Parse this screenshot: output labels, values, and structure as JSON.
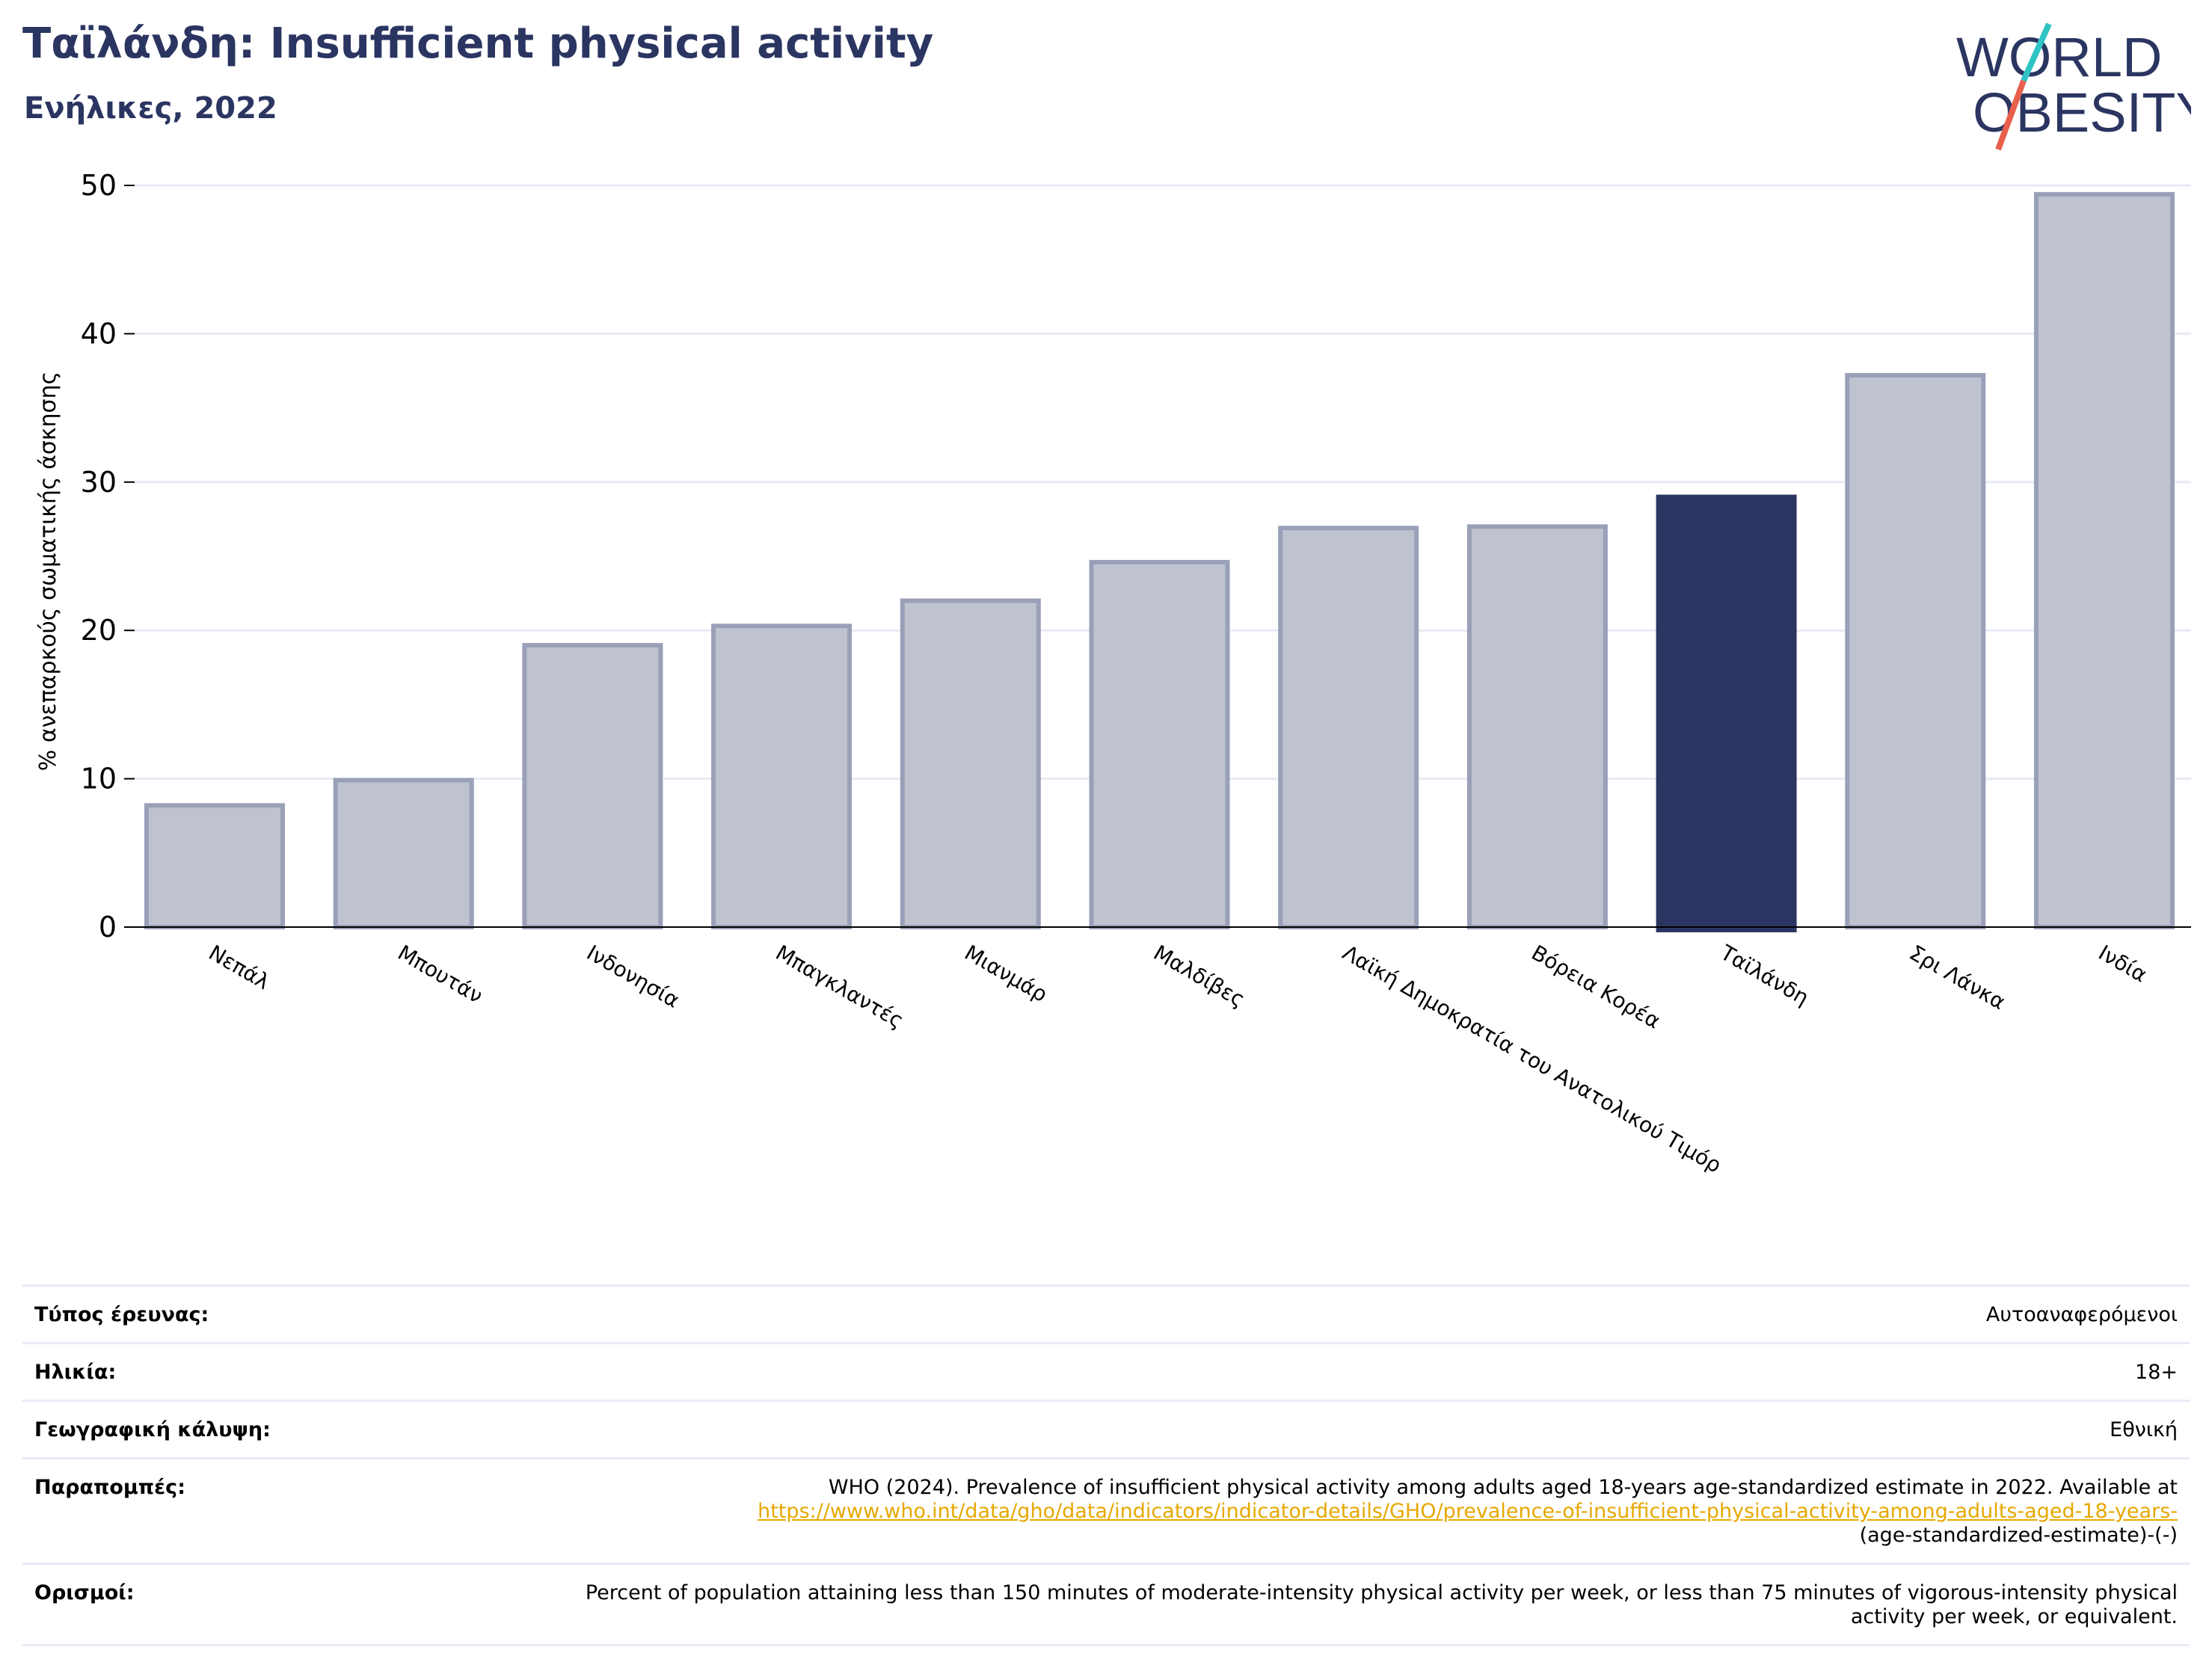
{
  "header": {
    "title": "Ταϊλάνδη: Insufficient physical activity",
    "subtitle": "Ενήλικες, 2022"
  },
  "logo": {
    "line1": "WORLD",
    "line2": "OBESITY",
    "primary_color": "#2b3561",
    "slash_color_top": "#2ec4c4",
    "slash_color_bottom": "#e8604c"
  },
  "chart_data": {
    "type": "bar",
    "ylabel": "% ανεπαρκούς σωματικής άσκησης",
    "ylim": [
      0,
      50
    ],
    "yticks": [
      0,
      10,
      20,
      30,
      40,
      50
    ],
    "grid": true,
    "categories": [
      "Νεπάλ",
      "Μπουτάν",
      "Ινδονησία",
      "Μπαγκλαντές",
      "Μιανμάρ",
      "Μαλδίβες",
      "Λαϊκή Δημοκρατία του Ανατολικού Τιμόρ",
      "Βόρεια Κορέα",
      "Ταϊλάνδη",
      "Σρι Λάνκα",
      "Ινδία"
    ],
    "values": [
      8.2,
      9.9,
      19.0,
      20.3,
      22.0,
      24.6,
      26.9,
      27.0,
      29.0,
      37.2,
      49.4
    ],
    "highlight": "Ταϊλάνδη",
    "colors": {
      "bar": "#bfc3d0",
      "bar_edge": "#9aa0b8",
      "highlight": "#2b3561"
    }
  },
  "meta": [
    {
      "label": "Τύπος έρευνας:",
      "value": "Αυτοαναφερόμενοι"
    },
    {
      "label": "Ηλικία:",
      "value": "18+"
    },
    {
      "label": "Γεωγραφική κάλυψη:",
      "value": "Εθνική"
    },
    {
      "label": "Παραπομπές:",
      "value": "WHO (2024). Prevalence of insufficient physical activity among adults aged 18-years age-standardized estimate in 2022. Available at",
      "link": "https://www.who.int/data/gho/data/indicators/indicator-details/GHO/prevalence-of-insufficient-physical-activity-among-adults-aged-18-years-",
      "value_after": "(age-standardized-estimate)-(-)"
    },
    {
      "label": "Ορισμοί:",
      "value": "Percent of population attaining less than 150 minutes of moderate-intensity physical activity per week, or less than 75 minutes of vigorous-intensity physical activity per week, or equivalent."
    }
  ]
}
